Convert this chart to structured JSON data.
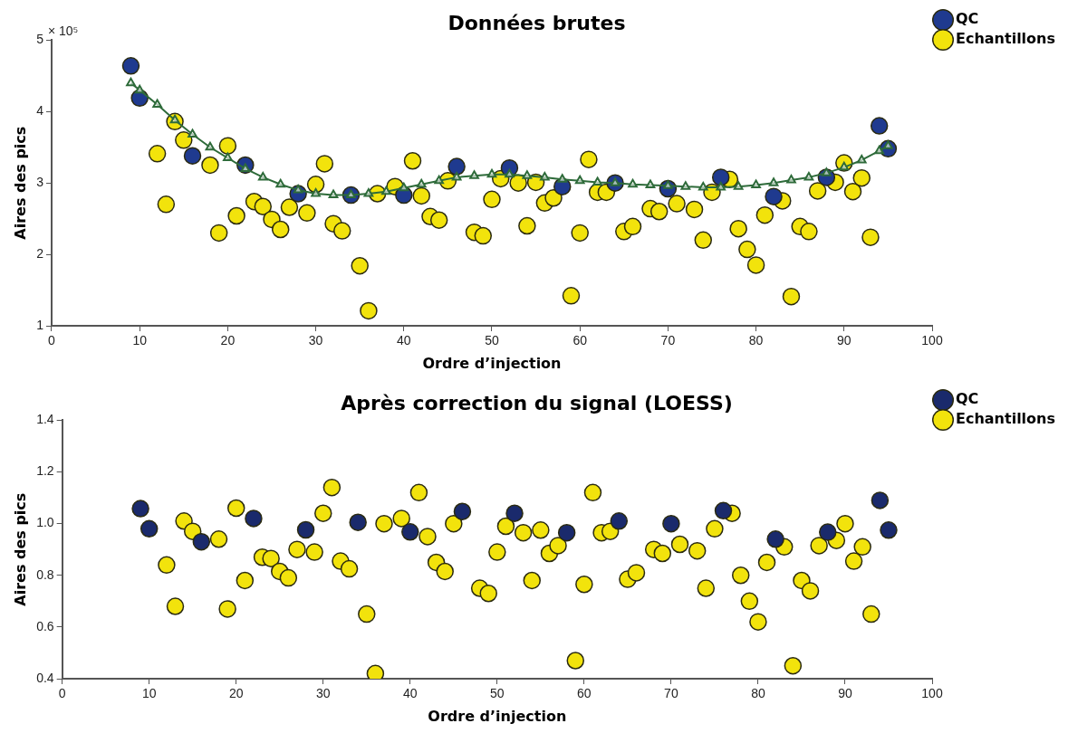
{
  "chart_data": [
    {
      "type": "scatter",
      "title": "Données brutes",
      "xlabel": "Ordre d’injection",
      "ylabel": "Aires des pics",
      "annotations": [
        "× 10⁵"
      ],
      "xlim": [
        0,
        100
      ],
      "xticks": [
        0,
        10,
        20,
        30,
        40,
        50,
        60,
        70,
        80,
        90,
        100
      ],
      "ylim": [
        1,
        5
      ],
      "yticks": [
        1,
        2,
        3,
        4,
        5
      ],
      "grid": false,
      "legend": "top right",
      "marker": "circle",
      "series": [
        {
          "type": "line",
          "marker": "triangle",
          "color": "#2e6b3a",
          "x": [
            9,
            10,
            12,
            14,
            16,
            18,
            20,
            22,
            24,
            26,
            28,
            30,
            32,
            34,
            36,
            38,
            40,
            42,
            44,
            46,
            48,
            50,
            52,
            54,
            56,
            58,
            60,
            62,
            64,
            66,
            68,
            70,
            72,
            74,
            76,
            78,
            80,
            82,
            84,
            86,
            88,
            90,
            92,
            94,
            95
          ],
          "values": [
            4.4,
            4.3,
            4.1,
            3.88,
            3.68,
            3.5,
            3.35,
            3.2,
            3.08,
            2.98,
            2.9,
            2.85,
            2.83,
            2.83,
            2.85,
            2.88,
            2.93,
            2.98,
            3.03,
            3.08,
            3.1,
            3.12,
            3.12,
            3.1,
            3.08,
            3.05,
            3.03,
            3.01,
            3.0,
            2.98,
            2.97,
            2.96,
            2.95,
            2.94,
            2.94,
            2.95,
            2.97,
            3.0,
            3.04,
            3.08,
            3.14,
            3.22,
            3.32,
            3.45,
            3.52
          ]
        },
        {
          "name": "QC",
          "color": "#1f3a8f",
          "x": [
            9,
            10,
            16,
            22,
            28,
            34,
            40,
            46,
            52,
            58,
            64,
            70,
            76,
            82,
            88,
            94,
            95
          ],
          "values": [
            4.64,
            4.19,
            3.38,
            3.25,
            2.85,
            2.83,
            2.83,
            3.23,
            3.21,
            2.95,
            3.0,
            2.92,
            3.08,
            2.81,
            3.08,
            3.8,
            3.48
          ]
        },
        {
          "name": "Echantillons",
          "color": "#f2e30c",
          "x": [
            12,
            13,
            14,
            15,
            18,
            19,
            20,
            21,
            23,
            24,
            25,
            26,
            27,
            29,
            30,
            31,
            32,
            33,
            35,
            36,
            37,
            39,
            41,
            42,
            43,
            44,
            45,
            48,
            49,
            50,
            51,
            53,
            54,
            55,
            56,
            57,
            59,
            60,
            61,
            62,
            63,
            65,
            66,
            68,
            69,
            71,
            73,
            74,
            75,
            77,
            78,
            79,
            80,
            81,
            83,
            84,
            85,
            86,
            87,
            89,
            90,
            91,
            92,
            93
          ],
          "values": [
            3.41,
            2.7,
            3.86,
            3.6,
            3.25,
            2.3,
            3.52,
            2.54,
            2.74,
            2.67,
            2.49,
            2.35,
            2.66,
            2.58,
            2.98,
            3.27,
            2.43,
            2.33,
            1.84,
            1.21,
            2.85,
            2.95,
            3.31,
            2.82,
            2.53,
            2.48,
            3.03,
            2.31,
            2.26,
            2.77,
            3.06,
            3.0,
            2.4,
            3.01,
            2.72,
            2.79,
            1.42,
            2.3,
            3.33,
            2.87,
            2.87,
            2.32,
            2.39,
            2.64,
            2.6,
            2.71,
            2.63,
            2.2,
            2.87,
            3.05,
            2.36,
            2.07,
            1.85,
            2.55,
            2.75,
            1.41,
            2.39,
            2.32,
            2.89,
            3.01,
            3.28,
            2.88,
            3.07,
            2.24
          ]
        }
      ]
    },
    {
      "type": "scatter",
      "title": "Après correction du signal (LOESS)",
      "xlabel": "Ordre d’injection",
      "ylabel": "Aires des pics",
      "xlim": [
        0,
        100
      ],
      "xticks": [
        0,
        10,
        20,
        30,
        40,
        50,
        60,
        70,
        80,
        90,
        100
      ],
      "ylim": [
        0.4,
        1.4
      ],
      "yticks": [
        0.4,
        0.6,
        0.8,
        {
          "value": 1,
          "label": "1.0"
        },
        1.2,
        1.4
      ],
      "grid": false,
      "legend": "top right",
      "marker": "circle",
      "series": [
        {
          "name": "QC",
          "color": "#1a2a6c",
          "x": [
            9,
            10,
            16,
            22,
            28,
            34,
            40,
            46,
            52,
            58,
            64,
            70,
            76,
            82,
            88,
            94,
            95
          ],
          "values": [
            1.058,
            0.98,
            0.93,
            1.02,
            0.976,
            1.005,
            0.968,
            1.047,
            1.04,
            0.965,
            1.01,
            1.0,
            1.05,
            0.94,
            0.967,
            1.09,
            0.975
          ]
        },
        {
          "name": "Echantillons",
          "color": "#f2e30c",
          "x": [
            12,
            13,
            14,
            15,
            18,
            19,
            20,
            21,
            23,
            24,
            25,
            26,
            27,
            29,
            30,
            31,
            32,
            33,
            35,
            36,
            37,
            39,
            41,
            42,
            43,
            44,
            45,
            48,
            49,
            50,
            51,
            53,
            54,
            55,
            56,
            57,
            59,
            60,
            61,
            62,
            63,
            65,
            66,
            68,
            69,
            71,
            73,
            74,
            75,
            77,
            78,
            79,
            80,
            81,
            83,
            84,
            85,
            86,
            87,
            89,
            90,
            91,
            92,
            93
          ],
          "values": [
            0.84,
            0.68,
            1.01,
            0.97,
            0.94,
            0.67,
            1.06,
            0.78,
            0.87,
            0.865,
            0.815,
            0.79,
            0.9,
            0.89,
            1.04,
            1.14,
            0.855,
            0.825,
            0.65,
            0.42,
            1.0,
            1.02,
            1.12,
            0.95,
            0.85,
            0.815,
            1.0,
            0.75,
            0.73,
            0.89,
            0.99,
            0.965,
            0.78,
            0.975,
            0.885,
            0.915,
            0.47,
            0.765,
            1.12,
            0.965,
            0.97,
            0.785,
            0.81,
            0.9,
            0.885,
            0.92,
            0.895,
            0.75,
            0.98,
            1.04,
            0.8,
            0.7,
            0.62,
            0.85,
            0.91,
            0.45,
            0.78,
            0.74,
            0.915,
            0.935,
            1.0,
            0.855,
            0.91,
            0.65
          ]
        }
      ]
    }
  ]
}
